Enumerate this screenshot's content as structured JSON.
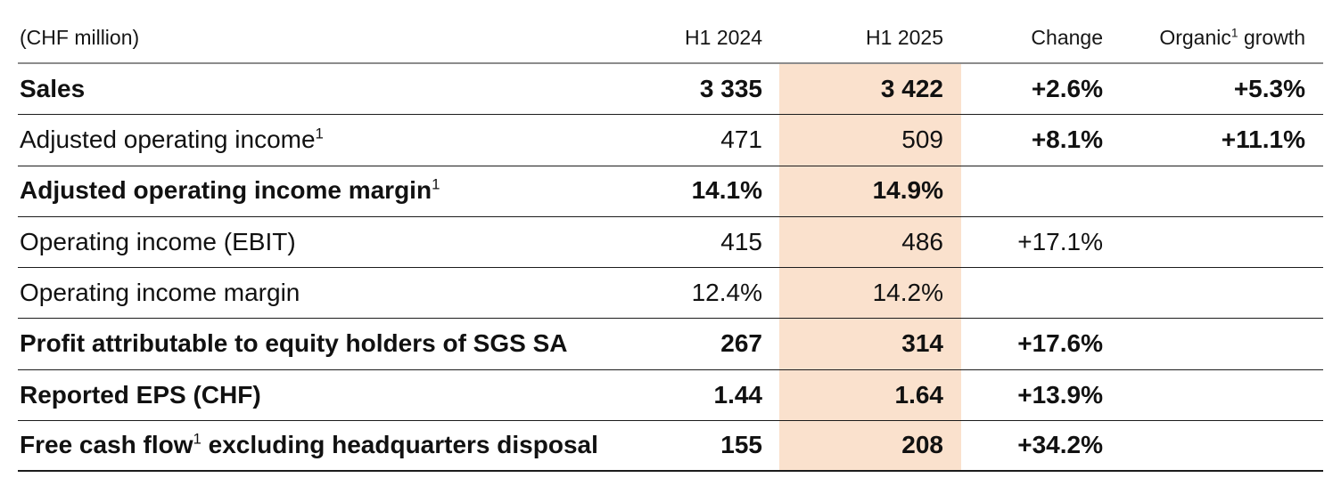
{
  "table": {
    "unit_label": "(CHF million)",
    "col_h1_2024": "H1 2024",
    "col_h1_2025": "H1 2025",
    "col_change": "Change",
    "col_organic_pre": "Organic",
    "col_organic_sup": "1",
    "col_organic_post": " growth",
    "highlight_color": "#fae1cd",
    "rows": [
      {
        "label_pre": "Sales",
        "label_sup": "",
        "label_post": "",
        "bold": true,
        "change_bold": true,
        "h1_2024": "3 335",
        "h1_2025": "3 422",
        "change": "+2.6%",
        "organic": "+5.3%"
      },
      {
        "label_pre": "Adjusted operating income",
        "label_sup": "1",
        "label_post": "",
        "bold": false,
        "change_bold": true,
        "h1_2024": "471",
        "h1_2025": "509",
        "change": "+8.1%",
        "organic": "+11.1%"
      },
      {
        "label_pre": "Adjusted operating income margin",
        "label_sup": "1",
        "label_post": "",
        "bold": true,
        "change_bold": true,
        "h1_2024": "14.1%",
        "h1_2025": "14.9%",
        "change": "",
        "organic": ""
      },
      {
        "label_pre": "Operating income (EBIT)",
        "label_sup": "",
        "label_post": "",
        "bold": false,
        "change_bold": false,
        "h1_2024": "415",
        "h1_2025": "486",
        "change": "+17.1%",
        "organic": ""
      },
      {
        "label_pre": "Operating income margin",
        "label_sup": "",
        "label_post": "",
        "bold": false,
        "change_bold": false,
        "h1_2024": "12.4%",
        "h1_2025": "14.2%",
        "change": "",
        "organic": ""
      },
      {
        "label_pre": "Profit attributable to equity holders of SGS SA",
        "label_sup": "",
        "label_post": "",
        "bold": true,
        "change_bold": true,
        "h1_2024": "267",
        "h1_2025": "314",
        "change": "+17.6%",
        "organic": ""
      },
      {
        "label_pre": "Reported EPS (CHF)",
        "label_sup": "",
        "label_post": "",
        "bold": true,
        "change_bold": true,
        "h1_2024": "1.44",
        "h1_2025": "1.64",
        "change": "+13.9%",
        "organic": ""
      },
      {
        "label_pre": "Free cash flow",
        "label_sup": "1",
        "label_post": " excluding headquarters disposal",
        "bold": true,
        "change_bold": true,
        "h1_2024": "155",
        "h1_2025": "208",
        "change": "+34.2%",
        "organic": ""
      }
    ]
  }
}
